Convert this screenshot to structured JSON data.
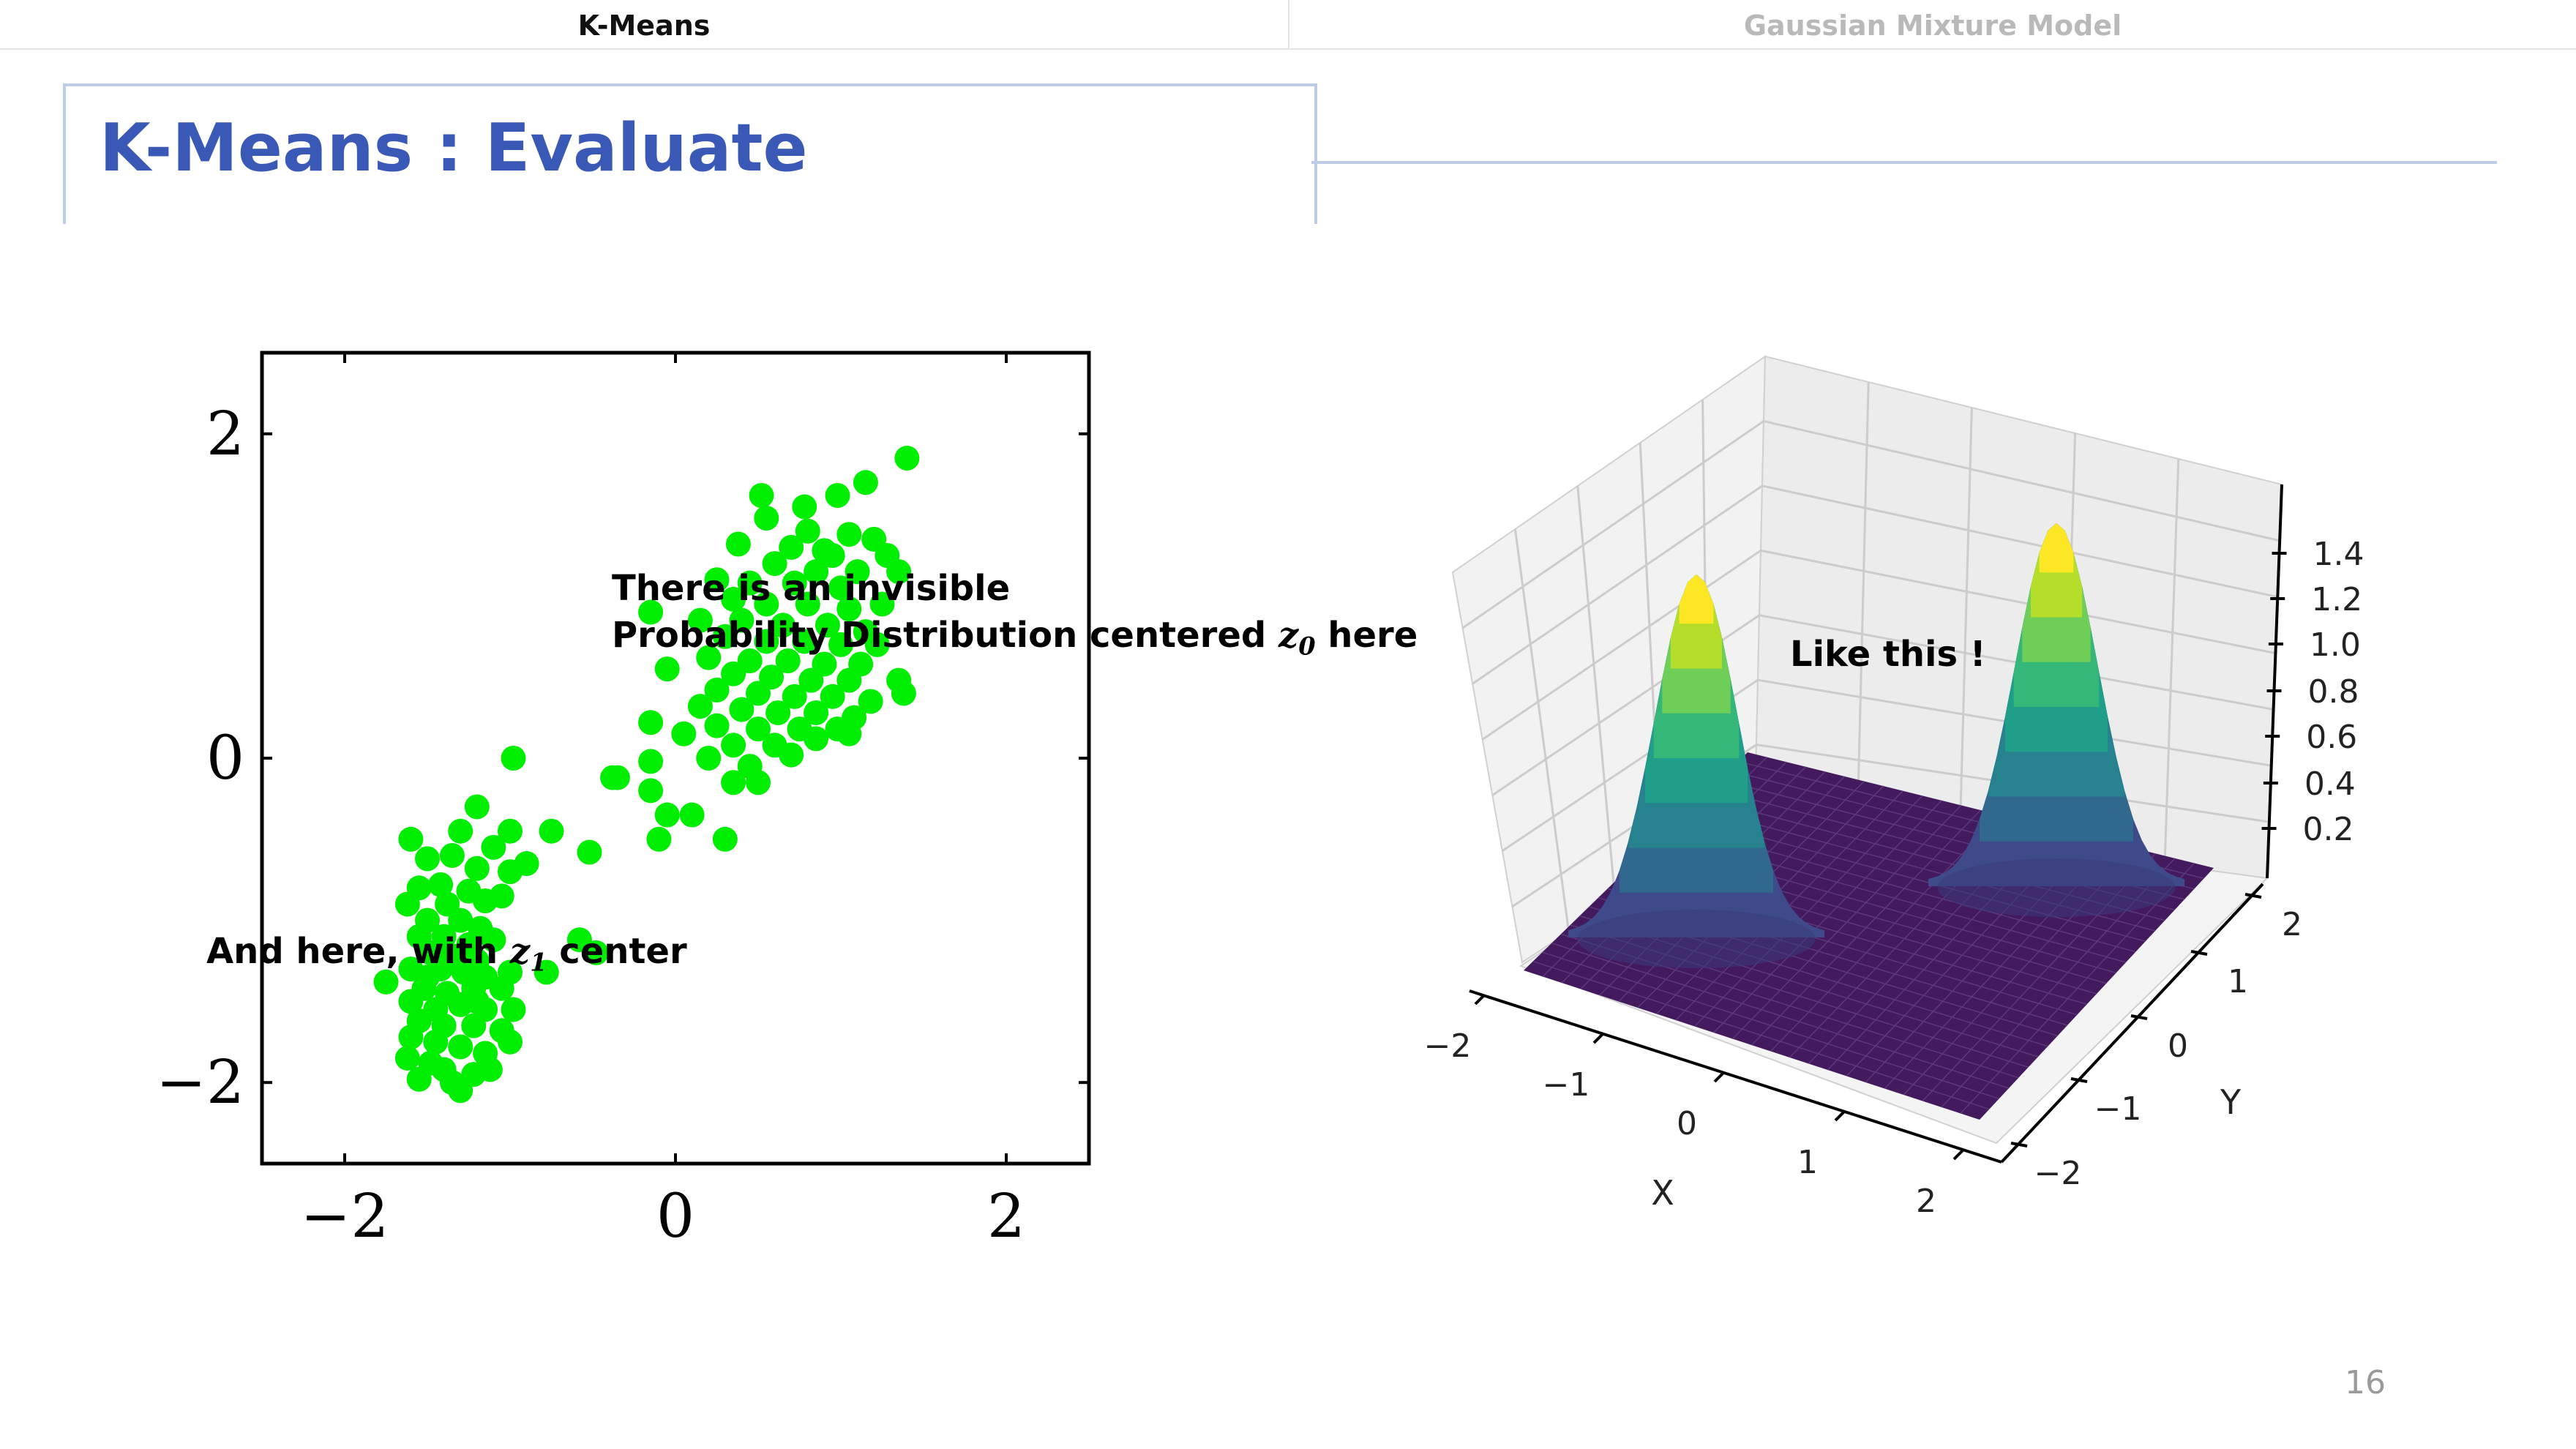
{
  "nav": {
    "tabs": [
      {
        "label": "K-Means"
      },
      {
        "label": "Gaussian Mixture Model"
      }
    ]
  },
  "slide": {
    "title": "K-Means : Evaluate",
    "page": "16"
  },
  "annotations": {
    "left_1_line1": "There is an invisible",
    "left_1_line2a": "Probability Distribution centered ",
    "left_1_sym": "z",
    "left_1_sub": "0",
    "left_1_line2b": " here",
    "left_2_a": "And here, with ",
    "left_2_sym": "z",
    "left_2_sub": "1",
    "left_2_b": " center",
    "right_1": "Like this !"
  },
  "chart_data": [
    {
      "type": "scatter",
      "title": "",
      "xlabel": "",
      "ylabel": "",
      "xlim": [
        -2.5,
        2.5
      ],
      "ylim": [
        -2.5,
        2.5
      ],
      "xticks": [
        "−2",
        "0",
        "2"
      ],
      "yticks": [
        "−2",
        "0",
        "2"
      ],
      "color": "#00ee00",
      "series": [
        {
          "points": [
            [
              1.4,
              1.85
            ],
            [
              0.52,
              1.62
            ],
            [
              0.78,
              1.55
            ],
            [
              0.98,
              1.62
            ],
            [
              1.15,
              1.7
            ],
            [
              0.55,
              1.48
            ],
            [
              0.8,
              1.4
            ],
            [
              1.05,
              1.38
            ],
            [
              1.2,
              1.35
            ],
            [
              0.38,
              1.32
            ],
            [
              0.7,
              1.3
            ],
            [
              0.9,
              1.28
            ],
            [
              1.28,
              1.25
            ],
            [
              0.95,
              1.25
            ],
            [
              0.6,
              1.2
            ],
            [
              0.85,
              1.15
            ],
            [
              1.1,
              1.15
            ],
            [
              1.35,
              1.15
            ],
            [
              0.25,
              1.1
            ],
            [
              0.45,
              1.08
            ],
            [
              0.72,
              1.08
            ],
            [
              1.0,
              1.05
            ],
            [
              0.35,
              0.98
            ],
            [
              0.55,
              0.95
            ],
            [
              0.8,
              0.95
            ],
            [
              1.05,
              0.92
            ],
            [
              1.25,
              0.95
            ],
            [
              -0.15,
              0.9
            ],
            [
              0.15,
              0.85
            ],
            [
              0.4,
              0.85
            ],
            [
              0.65,
              0.82
            ],
            [
              0.92,
              0.82
            ],
            [
              1.15,
              0.78
            ],
            [
              0.3,
              0.75
            ],
            [
              0.55,
              0.72
            ],
            [
              0.78,
              0.72
            ],
            [
              1.0,
              0.7
            ],
            [
              1.22,
              0.7
            ],
            [
              0.2,
              0.62
            ],
            [
              0.45,
              0.6
            ],
            [
              0.68,
              0.6
            ],
            [
              0.9,
              0.58
            ],
            [
              1.12,
              0.58
            ],
            [
              -0.05,
              0.55
            ],
            [
              0.35,
              0.52
            ],
            [
              0.58,
              0.5
            ],
            [
              0.82,
              0.48
            ],
            [
              1.05,
              0.48
            ],
            [
              1.35,
              0.48
            ],
            [
              0.25,
              0.42
            ],
            [
              0.5,
              0.4
            ],
            [
              0.72,
              0.38
            ],
            [
              0.95,
              0.38
            ],
            [
              1.18,
              0.35
            ],
            [
              1.38,
              0.4
            ],
            [
              0.15,
              0.32
            ],
            [
              0.4,
              0.3
            ],
            [
              0.62,
              0.28
            ],
            [
              0.85,
              0.28
            ],
            [
              1.08,
              0.25
            ],
            [
              0.25,
              0.2
            ],
            [
              0.5,
              0.18
            ],
            [
              0.75,
              0.18
            ],
            [
              0.98,
              0.18
            ],
            [
              -0.15,
              0.22
            ],
            [
              0.05,
              0.15
            ],
            [
              0.35,
              0.08
            ],
            [
              0.6,
              0.08
            ],
            [
              0.85,
              0.12
            ],
            [
              1.05,
              0.15
            ],
            [
              0.45,
              -0.05
            ],
            [
              0.7,
              0.02
            ],
            [
              -0.15,
              -0.02
            ],
            [
              0.2,
              0.0
            ],
            [
              0.35,
              -0.15
            ],
            [
              0.5,
              -0.15
            ],
            [
              -0.35,
              -0.12
            ],
            [
              -0.15,
              -0.2
            ],
            [
              0.1,
              -0.35
            ],
            [
              -0.05,
              -0.35
            ],
            [
              -0.1,
              -0.5
            ],
            [
              0.3,
              -0.5
            ],
            [
              -0.98,
              0.0
            ],
            [
              -0.38,
              -0.12
            ],
            [
              -0.52,
              -0.58
            ],
            [
              -1.2,
              -0.3
            ],
            [
              -1.0,
              -0.45
            ],
            [
              -0.75,
              -0.45
            ],
            [
              -1.6,
              -0.5
            ],
            [
              -1.3,
              -0.45
            ],
            [
              -1.1,
              -0.55
            ],
            [
              -1.5,
              -0.62
            ],
            [
              -1.35,
              -0.6
            ],
            [
              -0.9,
              -0.65
            ],
            [
              -1.2,
              -0.68
            ],
            [
              -1.0,
              -0.7
            ],
            [
              -1.55,
              -0.8
            ],
            [
              -1.42,
              -0.78
            ],
            [
              -1.25,
              -0.82
            ],
            [
              -1.05,
              -0.85
            ],
            [
              -1.62,
              -0.9
            ],
            [
              -1.38,
              -0.9
            ],
            [
              -1.15,
              -0.88
            ],
            [
              -1.5,
              -1.0
            ],
            [
              -1.3,
              -1.0
            ],
            [
              -1.18,
              -1.05
            ],
            [
              -1.55,
              -1.1
            ],
            [
              -1.4,
              -1.1
            ],
            [
              -1.25,
              -1.15
            ],
            [
              -1.1,
              -1.12
            ],
            [
              -1.48,
              -1.2
            ],
            [
              -1.35,
              -1.22
            ],
            [
              -1.2,
              -1.25
            ],
            [
              -0.58,
              -1.12
            ],
            [
              -0.48,
              -1.2
            ],
            [
              -1.6,
              -1.3
            ],
            [
              -1.42,
              -1.3
            ],
            [
              -1.28,
              -1.32
            ],
            [
              -1.15,
              -1.35
            ],
            [
              -1.0,
              -1.32
            ],
            [
              -0.78,
              -1.32
            ],
            [
              -1.75,
              -1.38
            ],
            [
              -1.52,
              -1.42
            ],
            [
              -1.38,
              -1.45
            ],
            [
              -1.22,
              -1.42
            ],
            [
              -1.05,
              -1.42
            ],
            [
              -1.6,
              -1.5
            ],
            [
              -1.45,
              -1.55
            ],
            [
              -1.3,
              -1.52
            ],
            [
              -1.15,
              -1.55
            ],
            [
              -0.98,
              -1.55
            ],
            [
              -1.55,
              -1.62
            ],
            [
              -1.4,
              -1.65
            ],
            [
              -1.22,
              -1.65
            ],
            [
              -1.05,
              -1.68
            ],
            [
              -1.6,
              -1.72
            ],
            [
              -1.45,
              -1.75
            ],
            [
              -1.3,
              -1.78
            ],
            [
              -1.15,
              -1.82
            ],
            [
              -1.62,
              -1.85
            ],
            [
              -1.48,
              -1.88
            ],
            [
              -1.0,
              -1.75
            ],
            [
              -1.4,
              -1.92
            ],
            [
              -1.22,
              -1.95
            ],
            [
              -1.55,
              -1.98
            ],
            [
              -1.35,
              -2.0
            ],
            [
              -1.12,
              -1.92
            ],
            [
              -1.3,
              -2.05
            ],
            [
              -1.5,
              -1.35
            ],
            [
              -1.2,
              -1.5
            ]
          ]
        }
      ]
    },
    {
      "type": "surface",
      "title": "",
      "xlabel": "X",
      "ylabel": "Y",
      "zlabel": "",
      "xlim": [
        -2,
        2
      ],
      "ylim": [
        -2,
        2
      ],
      "zlim": [
        0,
        1.5
      ],
      "xticks": [
        "−2",
        "−1",
        "0",
        "1",
        "2"
      ],
      "yticks": [
        "−2",
        "−1",
        "0",
        "1",
        "2"
      ],
      "zticks": [
        "0.2",
        "0.4",
        "0.6",
        "0.8",
        "1.0",
        "1.2",
        "1.4"
      ],
      "peaks": 2,
      "peak_height": 1.45,
      "colormap": "viridis"
    }
  ]
}
